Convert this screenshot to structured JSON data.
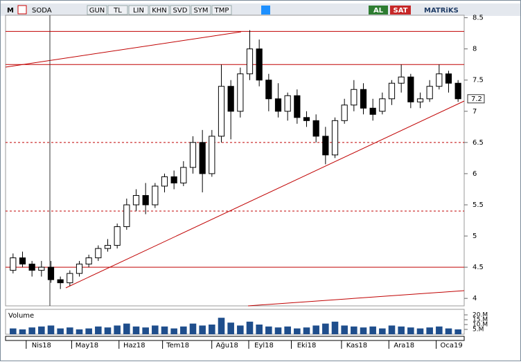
{
  "toolbar": {
    "logo": "M",
    "symbol": "SODA",
    "buttons": [
      "GUN",
      "TL",
      "LIN",
      "KHN",
      "SVD",
      "SYM",
      "TMP"
    ],
    "buy": "AL",
    "sell": "SAT",
    "brand": "MATRiKS"
  },
  "chart_data": [
    {
      "type": "candlestick",
      "open": [
        4.45,
        4.65,
        4.55,
        4.45,
        4.5,
        4.3,
        4.25,
        4.4,
        4.55,
        4.65,
        4.8,
        4.85,
        5.15,
        5.5,
        5.65,
        5.5,
        5.8,
        5.95,
        5.85,
        6.1,
        6.5,
        6.0,
        6.6,
        7.4,
        7.0,
        7.6,
        8.0,
        7.5,
        7.2,
        7.0,
        7.25,
        6.9,
        6.85,
        6.6,
        6.3,
        6.85,
        7.1,
        7.35,
        7.05,
        7.0,
        7.2,
        7.45,
        7.55,
        7.15,
        7.2,
        7.4,
        7.6,
        7.45
      ],
      "high": [
        4.72,
        4.75,
        4.6,
        4.6,
        4.6,
        4.35,
        4.45,
        4.6,
        4.7,
        4.85,
        4.95,
        5.2,
        5.6,
        5.75,
        5.85,
        5.85,
        6.0,
        6.05,
        6.2,
        6.6,
        6.7,
        6.7,
        7.75,
        7.5,
        7.7,
        8.3,
        8.15,
        7.6,
        7.45,
        7.3,
        7.35,
        7.0,
        6.95,
        6.75,
        6.9,
        7.2,
        7.5,
        7.45,
        7.2,
        7.3,
        7.5,
        7.75,
        7.6,
        7.3,
        7.5,
        7.75,
        7.65,
        7.5
      ],
      "low": [
        4.4,
        4.5,
        4.35,
        4.35,
        4.25,
        4.15,
        4.2,
        4.35,
        4.5,
        4.6,
        4.75,
        4.8,
        5.1,
        5.4,
        5.35,
        5.45,
        5.7,
        5.75,
        5.8,
        6.0,
        5.7,
        5.95,
        6.5,
        6.55,
        6.9,
        7.5,
        7.4,
        7.0,
        6.9,
        6.85,
        6.8,
        6.75,
        6.5,
        6.15,
        6.25,
        6.8,
        7.0,
        6.95,
        6.85,
        6.95,
        7.1,
        7.3,
        7.05,
        7.05,
        7.15,
        7.35,
        7.3,
        7.15
      ],
      "close": [
        4.65,
        4.55,
        4.45,
        4.5,
        4.3,
        4.25,
        4.4,
        4.55,
        4.65,
        4.8,
        4.85,
        5.15,
        5.5,
        5.65,
        5.5,
        5.8,
        5.95,
        5.85,
        6.1,
        6.5,
        6.0,
        6.6,
        7.4,
        7.0,
        7.6,
        8.0,
        7.5,
        7.2,
        7.0,
        7.25,
        6.9,
        6.85,
        6.6,
        6.3,
        6.85,
        7.1,
        7.35,
        7.05,
        6.95,
        7.2,
        7.45,
        7.55,
        7.15,
        7.2,
        7.4,
        7.6,
        7.45,
        7.2
      ],
      "xticks": [
        {
          "value": 3.0,
          "label": "Nis18"
        },
        {
          "value": 7.8,
          "label": "May18"
        },
        {
          "value": 12.8,
          "label": "Haz18"
        },
        {
          "value": 17.4,
          "label": "Tem18"
        },
        {
          "value": 22.6,
          "label": "Ağu18"
        },
        {
          "value": 26.5,
          "label": "Eyl18"
        },
        {
          "value": 31.0,
          "label": "Eki18"
        },
        {
          "value": 36.3,
          "label": "Kas18"
        },
        {
          "value": 41.3,
          "label": "Ara18"
        },
        {
          "value": 46.3,
          "label": "Oca19"
        }
      ],
      "ylim": [
        3.88,
        8.54
      ],
      "yticks": [
        4,
        4.5,
        5,
        5.5,
        6,
        6.5,
        7,
        7.5,
        8,
        8.5
      ],
      "last_price": 7.2,
      "hlines": [
        {
          "value": 8.28,
          "dashed": false
        },
        {
          "value": 7.75,
          "dashed": false
        },
        {
          "value": 6.5,
          "dashed": true
        },
        {
          "value": 5.4,
          "dashed": true
        },
        {
          "value": 4.5,
          "dashed": false
        }
      ],
      "color_up": "#ffffff",
      "color_down": "#000000",
      "line_color": "#c00000"
    },
    {
      "type": "bar",
      "title": "Volume",
      "color": "#1f4e8c",
      "values": [
        6000000,
        5000000,
        7000000,
        8000000,
        9000000,
        6000000,
        7000000,
        5000000,
        6000000,
        8000000,
        7000000,
        9000000,
        11000000,
        8000000,
        7000000,
        9000000,
        8000000,
        6000000,
        8000000,
        11000000,
        9000000,
        10000000,
        17000000,
        12000000,
        9000000,
        13000000,
        10000000,
        8000000,
        7000000,
        8000000,
        6000000,
        7000000,
        9000000,
        11000000,
        13000000,
        9000000,
        8000000,
        7000000,
        8000000,
        6000000,
        9000000,
        8000000,
        7000000,
        6000000,
        7000000,
        8000000,
        6000000,
        5000000
      ],
      "ylim": [
        0,
        25000000
      ],
      "yticks": [
        {
          "value": 5000000,
          "label": "5.M"
        },
        {
          "value": 10000000,
          "label": "10.M"
        },
        {
          "value": 15000000,
          "label": "15.M"
        },
        {
          "value": 20000000,
          "label": "20.M"
        }
      ]
    }
  ]
}
